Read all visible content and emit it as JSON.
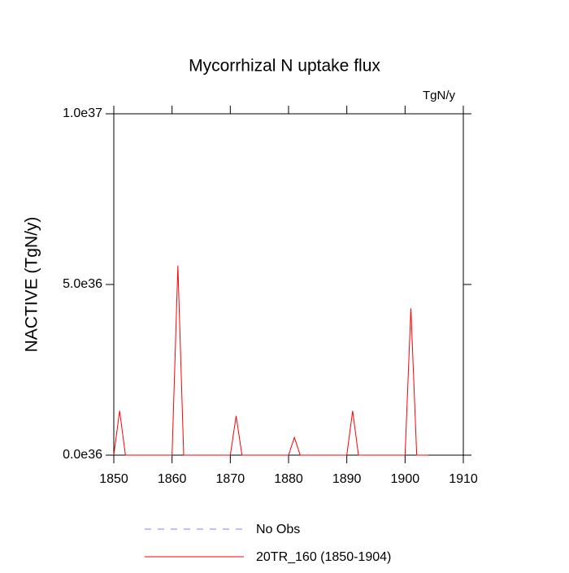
{
  "chart_data": {
    "type": "line",
    "title": "Mycorrhizal N uptake flux",
    "units": "TgN/y",
    "ylabel": "NACTIVE  (TgN/y)",
    "x": [
      1850,
      1851,
      1852,
      1853,
      1854,
      1855,
      1856,
      1857,
      1858,
      1859,
      1860,
      1861,
      1862,
      1863,
      1864,
      1865,
      1866,
      1867,
      1868,
      1869,
      1870,
      1871,
      1872,
      1873,
      1874,
      1875,
      1876,
      1877,
      1878,
      1879,
      1880,
      1881,
      1882,
      1883,
      1884,
      1885,
      1886,
      1887,
      1888,
      1889,
      1890,
      1891,
      1892,
      1893,
      1894,
      1895,
      1896,
      1897,
      1898,
      1899,
      1900,
      1901,
      1902,
      1903,
      1904
    ],
    "series": [
      {
        "name": "No Obs",
        "color": "#7f7fff",
        "dashed": true,
        "values": [
          null,
          null,
          null,
          null,
          null,
          null,
          null,
          null,
          null,
          null,
          null,
          null,
          null,
          null,
          null,
          null,
          null,
          null,
          null,
          null,
          null,
          null,
          null,
          null,
          null,
          null,
          null,
          null,
          null,
          null,
          null,
          null,
          null,
          null,
          null,
          null,
          null,
          null,
          null,
          null,
          null,
          null,
          null,
          null,
          null,
          null,
          null,
          null,
          null,
          null,
          null,
          null,
          null,
          null,
          null
        ]
      },
      {
        "name": "20TR_160 (1850-1904)",
        "color": "#ff0000",
        "dashed": false,
        "values": [
          0,
          1.3e+36,
          0,
          0,
          0,
          0,
          0,
          0,
          0,
          0,
          0,
          5.55e+36,
          0,
          0,
          0,
          0,
          0,
          0,
          0,
          0,
          0,
          1.15e+36,
          0,
          0,
          0,
          0,
          0,
          0,
          0,
          0,
          0,
          5.2e+35,
          0,
          0,
          0,
          0,
          0,
          0,
          0,
          0,
          0,
          1.3e+36,
          0,
          0,
          0,
          0,
          0,
          0,
          0,
          0,
          0,
          4.3e+36,
          0,
          0,
          0
        ]
      }
    ],
    "xlim": [
      1850,
      1910
    ],
    "xticks": [
      1850,
      1860,
      1870,
      1880,
      1890,
      1900,
      1910
    ],
    "ylim": [
      0,
      1e+37
    ],
    "yticks": [
      {
        "value": 0,
        "label": "0.0e36"
      },
      {
        "value": 5e+36,
        "label": "5.0e36"
      },
      {
        "value": 1e+37,
        "label": "1.0e37"
      }
    ]
  }
}
